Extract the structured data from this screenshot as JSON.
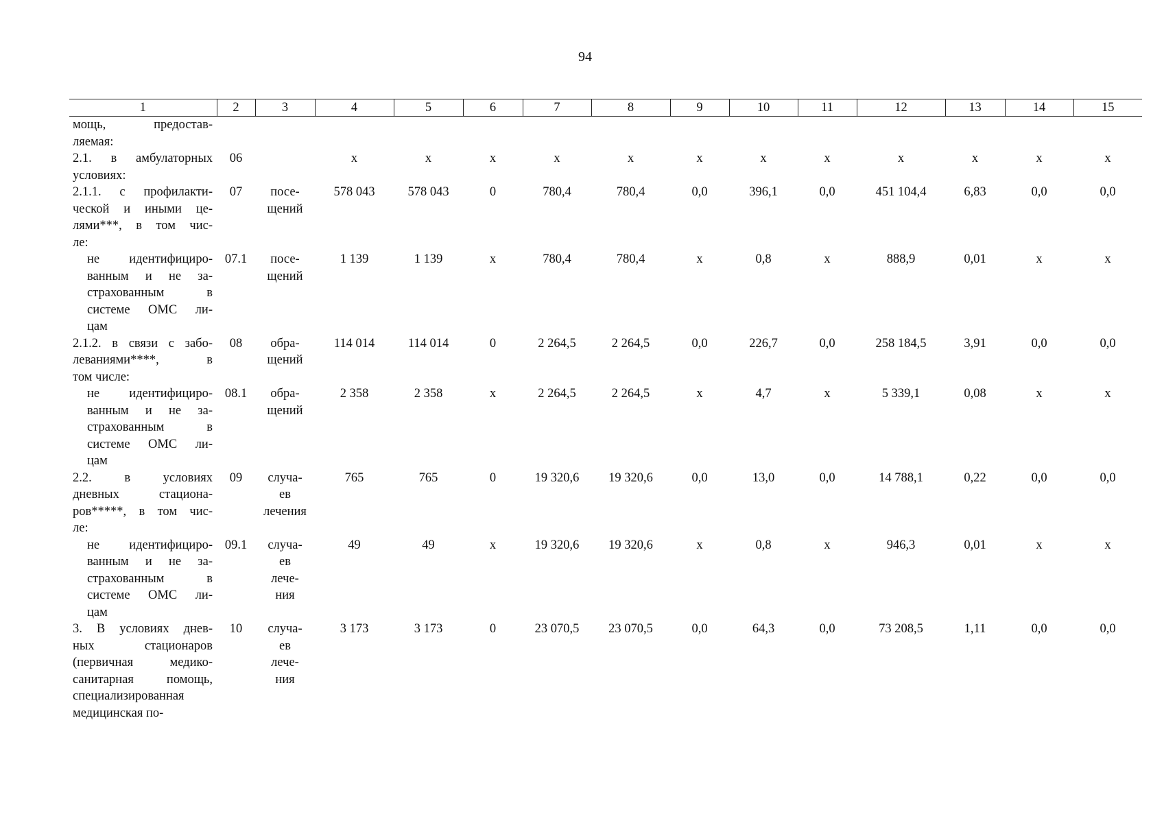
{
  "page_number": "94",
  "table": {
    "header": [
      "1",
      "2",
      "3",
      "4",
      "5",
      "6",
      "7",
      "8",
      "9",
      "10",
      "11",
      "12",
      "13",
      "14",
      "15"
    ],
    "rows": [
      [
        [
          "мощь, предостав-",
          "ляемая:"
        ],
        null,
        null,
        null,
        null,
        null,
        null,
        null,
        null,
        null,
        null,
        null,
        null,
        null,
        null
      ],
      [
        [
          "2.1. в амбулаторных",
          "условиях:"
        ],
        "06",
        null,
        "х",
        "х",
        "х",
        "х",
        "х",
        "х",
        "х",
        "х",
        "х",
        "х",
        "х",
        "х"
      ],
      [
        [
          "2.1.1. с профилакти-",
          "ческой и иными це-",
          "лями***, в том чис-",
          "ле:"
        ],
        "07",
        [
          "посе-",
          "щений"
        ],
        "578 043",
        "578 043",
        "0",
        "780,4",
        "780,4",
        "0,0",
        "396,1",
        "0,0",
        "451 104,4",
        "6,83",
        "0,0",
        "0,0"
      ],
      [
        [
          "не идентифициро-",
          "ванным и не за-",
          "страхованным в",
          "системе ОМС ли-",
          "цам"
        ],
        "07.1",
        [
          "посе-",
          "щений"
        ],
        "1 139",
        "1 139",
        "х",
        "780,4",
        "780,4",
        "х",
        "0,8",
        "х",
        "888,9",
        "0,01",
        "х",
        "х"
      ],
      [
        [
          "2.1.2. в связи с забо-",
          "леваниями****, в",
          "том числе:"
        ],
        "08",
        [
          "обра-",
          "щений"
        ],
        "114 014",
        "114 014",
        "0",
        "2 264,5",
        "2 264,5",
        "0,0",
        "226,7",
        "0,0",
        "258 184,5",
        "3,91",
        "0,0",
        "0,0"
      ],
      [
        [
          "не идентифициро-",
          "ванным и не за-",
          "страхованным в",
          "системе ОМС ли-",
          "цам"
        ],
        "08.1",
        [
          "обра-",
          "щений"
        ],
        "2 358",
        "2 358",
        "х",
        "2 264,5",
        "2 264,5",
        "х",
        "4,7",
        "х",
        "5 339,1",
        "0,08",
        "х",
        "х"
      ],
      [
        [
          "2.2. в условиях",
          "дневных стациона-",
          "ров*****, в том чис-",
          "ле:"
        ],
        "09",
        [
          "случа-",
          "ев",
          "лечения"
        ],
        "765",
        "765",
        "0",
        "19 320,6",
        "19 320,6",
        "0,0",
        "13,0",
        "0,0",
        "14 788,1",
        "0,22",
        "0,0",
        "0,0"
      ],
      [
        [
          "не идентифициро-",
          "ванным и не за-",
          "страхованным в",
          "системе ОМС ли-",
          "цам"
        ],
        "09.1",
        [
          "случа-",
          "ев",
          "лече-",
          "ния"
        ],
        "49",
        "49",
        "х",
        "19 320,6",
        "19 320,6",
        "х",
        "0,8",
        "х",
        "946,3",
        "0,01",
        "х",
        "х"
      ],
      [
        [
          "3. В условиях днев-",
          "ных стационаров",
          "(первичная медико-",
          "санитарная помощь,",
          "специализированная",
          "медицинская по-"
        ],
        "10",
        [
          "случа-",
          "ев",
          "лече-",
          "ния"
        ],
        "3 173",
        "3 173",
        "0",
        "23 070,5",
        "23 070,5",
        "0,0",
        "64,3",
        "0,0",
        "73 208,5",
        "1,11",
        "0,0",
        "0,0"
      ]
    ]
  }
}
